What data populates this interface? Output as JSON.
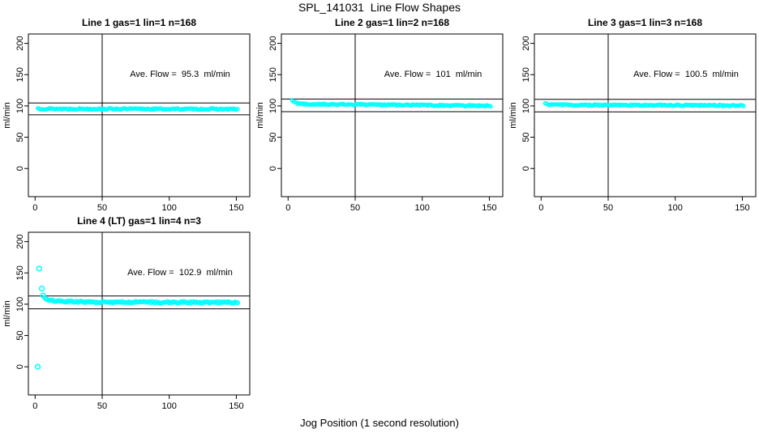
{
  "page": {
    "main_title": "SPL_141031  Line Flow Shapes",
    "x_axis_label": "Jog Position (1 second resolution)",
    "background_color": "#ffffff",
    "point_color": "#00ffff",
    "axis_color": "#000000"
  },
  "axes": {
    "xlim": [
      -5,
      160
    ],
    "ylim": [
      -45,
      215
    ],
    "x_ticks": [
      0,
      50,
      100,
      150
    ],
    "y_ticks": [
      0,
      50,
      100,
      150,
      200
    ],
    "y_label": "ml/min",
    "grid": false,
    "legend": "none"
  },
  "chart_data": [
    {
      "type": "scatter",
      "title": "Line 1 gas=1 lin=1 n=168",
      "annotation": "Ave. Flow =  95.3  ml/min",
      "ave_flow_ml_min": 95.3,
      "n": 168,
      "ref_lines_y": [
        104.8,
        85.8
      ],
      "ref_line_x": 50,
      "x_start": 2,
      "x_end": 151,
      "x_step": 1,
      "profile": [
        [
          2,
          96.2
        ],
        [
          4,
          95.6
        ],
        [
          10,
          95.4
        ],
        [
          30,
          95.3
        ],
        [
          60,
          95.3
        ],
        [
          100,
          95.1
        ],
        [
          130,
          95.0
        ],
        [
          151,
          94.8
        ]
      ],
      "outliers": [],
      "jitter": 1.1,
      "point_radius": 2
    },
    {
      "type": "scatter",
      "title": "Line 2 gas=1 lin=2 n=168",
      "annotation": "Ave. Flow =  101  ml/min",
      "ave_flow_ml_min": 101,
      "n": 168,
      "ref_lines_y": [
        111.1,
        90.9
      ],
      "ref_line_x": 50,
      "x_start": 3,
      "x_end": 151,
      "x_step": 1,
      "profile": [
        [
          3,
          109
        ],
        [
          4,
          107
        ],
        [
          5,
          105.5
        ],
        [
          7,
          104
        ],
        [
          10,
          103.2
        ],
        [
          20,
          102.8
        ],
        [
          40,
          102.4
        ],
        [
          70,
          101.8
        ],
        [
          100,
          101.2
        ],
        [
          125,
          100.6
        ],
        [
          151,
          100.2
        ]
      ],
      "outliers": [],
      "jitter": 1.1,
      "point_radius": 2
    },
    {
      "type": "scatter",
      "title": "Line 3 gas=1 lin=3 n=168",
      "annotation": "Ave. Flow =  100.5  ml/min",
      "ave_flow_ml_min": 100.5,
      "n": 168,
      "ref_lines_y": [
        110.6,
        90.5
      ],
      "ref_line_x": 50,
      "x_start": 3,
      "x_end": 151,
      "x_step": 1,
      "profile": [
        [
          3,
          104.5
        ],
        [
          4,
          103.2
        ],
        [
          6,
          102.2
        ],
        [
          10,
          101.8
        ],
        [
          30,
          101.5
        ],
        [
          60,
          101.3
        ],
        [
          100,
          101.1
        ],
        [
          151,
          100.7
        ]
      ],
      "outliers": [],
      "jitter": 1.1,
      "point_radius": 2
    },
    {
      "type": "scatter",
      "title": "Line 4 (LT) gas=1 lin=4 n=3",
      "annotation": "Ave. Flow =  102.9  ml/min",
      "ave_flow_ml_min": 102.9,
      "n": 3,
      "ref_lines_y": [
        113.2,
        92.6
      ],
      "ref_line_x": 50,
      "x_start": 7,
      "x_end": 151,
      "x_step": 1,
      "profile": [
        [
          7,
          110
        ],
        [
          8,
          108.5
        ],
        [
          10,
          107
        ],
        [
          13,
          105.5
        ],
        [
          18,
          104.6
        ],
        [
          25,
          104.2
        ],
        [
          35,
          103.8
        ],
        [
          50,
          103.6
        ],
        [
          65,
          103.3
        ],
        [
          80,
          103.5
        ],
        [
          95,
          103
        ],
        [
          110,
          103.2
        ],
        [
          125,
          102.7
        ],
        [
          140,
          103
        ],
        [
          151,
          102.6
        ]
      ],
      "outliers": [
        [
          2,
          0
        ],
        [
          3,
          157
        ],
        [
          5,
          125
        ],
        [
          6,
          114
        ]
      ],
      "jitter": 1.3,
      "point_radius": 2.3
    }
  ]
}
